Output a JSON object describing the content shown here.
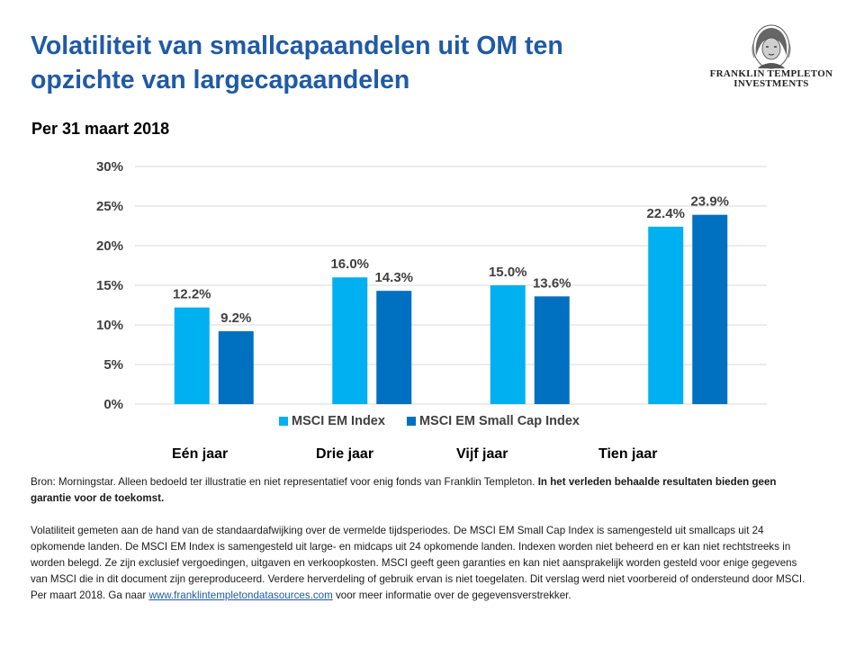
{
  "title_line1": "Volatiliteit van smallcapaandelen uit OM ten",
  "title_line2": "opzichte van largecapaandelen",
  "subtitle": "Per 31 maart 2018",
  "logo": {
    "line1": "FRANKLIN TEMPLETON",
    "line2": "INVESTMENTS"
  },
  "colors": {
    "accent": "#1f5aa6",
    "series1": "#00b0f0",
    "series2": "#0070c0",
    "grid": "#d9d9d9"
  },
  "chart_data": {
    "type": "bar",
    "categories": [
      "Eén jaar",
      "Drie jaar",
      "Vijf jaar",
      "Tien jaar"
    ],
    "series": [
      {
        "name": "MSCI EM Index",
        "values": [
          12.2,
          16.0,
          15.0,
          22.4
        ],
        "labels": [
          "12.2%",
          "16.0%",
          "15.0%",
          "22.4%"
        ]
      },
      {
        "name": "MSCI EM Small Cap Index",
        "values": [
          9.2,
          14.3,
          13.6,
          23.9
        ],
        "labels": [
          "9.2%",
          "14.3%",
          "13.6%",
          "23.9%"
        ]
      }
    ],
    "ylim": [
      0,
      30
    ],
    "yticks": [
      0,
      5,
      10,
      15,
      20,
      25,
      30
    ],
    "ytick_labels": [
      "0%",
      "5%",
      "10%",
      "15%",
      "20%",
      "25%",
      "30%"
    ],
    "grid": true,
    "legend_position": "bottom"
  },
  "footer": {
    "source_text": "Bron: Morningstar. Alleen bedoeld ter illustratie en niet representatief voor enig fonds van Franklin Templeton. ",
    "source_bold": "In het verleden behaalde resultaten bieden geen garantie voor de toekomst.",
    "disclaimer_text": "Volatiliteit gemeten aan de hand van de standaardafwijking over de vermelde tijdsperiodes. De MSCI EM Small Cap Index is samengesteld uit smallcaps uit 24 opkomende landen. De MSCI EM Index is samengesteld uit large- en midcaps uit 24 opkomende landen. Indexen worden niet beheerd en er kan niet rechtstreeks in worden belegd. Ze zijn exclusief vergoedingen, uitgaven en verkoopkosten. MSCI geeft geen garanties en kan niet aansprakelijk worden gesteld voor enige gegevens van MSCI die in dit document zijn gereproduceerd. Verdere herverdeling of gebruik ervan is niet toegelaten. Dit verslag werd niet voorbereid of ondersteund door MSCI. Per maart 2018. Ga naar ",
    "link_text": "www.franklintempletondatasources.com",
    "disclaimer_end": " voor meer informatie over de gegevensverstrekker."
  }
}
